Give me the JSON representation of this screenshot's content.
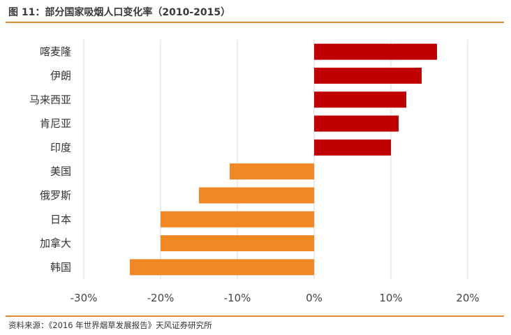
{
  "title": "图 11：部分国家吸烟人口变化率（2010-2015）",
  "source": "资料来源：《2016 年世界烟草发展报告》天风证券研究所",
  "colors": {
    "accent": "#e58a2f",
    "positive": "#c00000",
    "negative": "#f18824",
    "grid": "#d9d9d9"
  },
  "chart_data": {
    "type": "bar",
    "orientation": "horizontal",
    "categories": [
      "喀麦隆",
      "伊朗",
      "马来西亚",
      "肯尼亚",
      "印度",
      "美国",
      "俄罗斯",
      "日本",
      "加拿大",
      "韩国"
    ],
    "values": [
      16,
      14,
      12,
      11,
      10,
      -11,
      -15,
      -20,
      -20,
      -24
    ],
    "unit": "%",
    "xlim": [
      -30,
      20
    ],
    "xticks": [
      -30,
      -20,
      -10,
      0,
      10,
      20
    ],
    "tick_labels": [
      "-30%",
      "-20%",
      "-10%",
      "0%",
      "10%",
      "20%"
    ],
    "grid": "vertical",
    "title": "",
    "xlabel": "",
    "ylabel": ""
  }
}
